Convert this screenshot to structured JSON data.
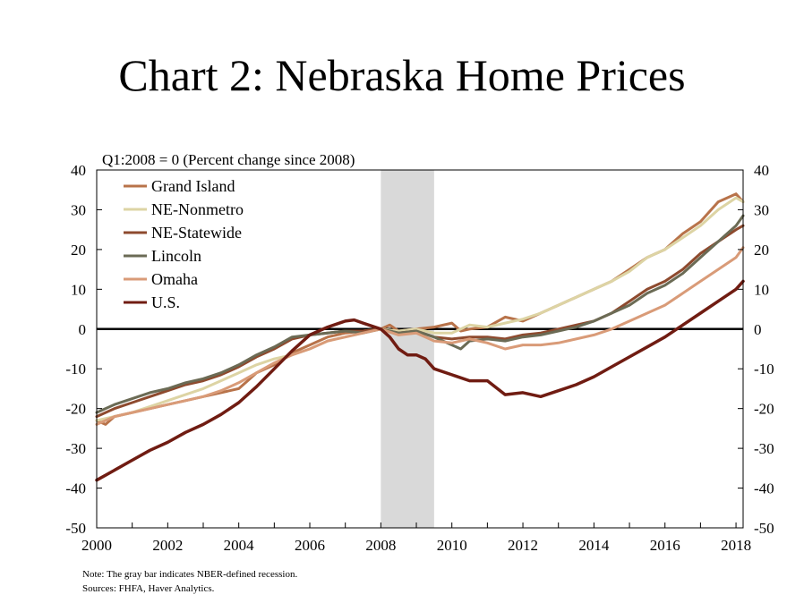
{
  "chart_data": {
    "type": "line",
    "title": "Chart 2: Nebraska Home Prices",
    "subtitle": "Q1:2008 = 0 (Percent change since 2008)",
    "xlabel": "",
    "ylabel": "",
    "xlim": [
      2000,
      2018.2
    ],
    "ylim": [
      -50,
      40
    ],
    "x_ticks": [
      "2000",
      "2002",
      "2004",
      "2006",
      "2008",
      "2010",
      "2012",
      "2014",
      "2016",
      "2018"
    ],
    "y_ticks": [
      "40",
      "30",
      "20",
      "10",
      "0",
      "-10",
      "-20",
      "-30",
      "-40",
      "-50"
    ],
    "right_axis": true,
    "grid": false,
    "legend_position": "top-left",
    "zero_line": true,
    "recession": {
      "start": 2008.0,
      "end": 2009.5,
      "color": "#d9d9d9"
    },
    "notes": [
      "Note: The gray bar indicates NBER-defined recession.",
      "Sources: FHFA, Haver Analytics."
    ],
    "series": [
      {
        "name": "Grand Island",
        "color": "#b8734a",
        "points": [
          [
            2000,
            -23
          ],
          [
            2000.25,
            -24
          ],
          [
            2000.5,
            -22
          ],
          [
            2001,
            -21
          ],
          [
            2001.5,
            -20
          ],
          [
            2002,
            -19
          ],
          [
            2002.5,
            -18
          ],
          [
            2003,
            -17
          ],
          [
            2003.5,
            -16
          ],
          [
            2004,
            -15
          ],
          [
            2004.25,
            -13
          ],
          [
            2004.5,
            -11
          ],
          [
            2005,
            -9
          ],
          [
            2005.5,
            -6
          ],
          [
            2006,
            -4
          ],
          [
            2006.5,
            -2
          ],
          [
            2007,
            -1
          ],
          [
            2007.5,
            -0.5
          ],
          [
            2008,
            0
          ],
          [
            2008.25,
            1
          ],
          [
            2008.5,
            -0.5
          ],
          [
            2009,
            0
          ],
          [
            2009.5,
            0.5
          ],
          [
            2010,
            1.5
          ],
          [
            2010.25,
            -0.5
          ],
          [
            2010.5,
            0
          ],
          [
            2011,
            0.5
          ],
          [
            2011.5,
            3
          ],
          [
            2012,
            2
          ],
          [
            2012.5,
            4
          ],
          [
            2013,
            6
          ],
          [
            2013.5,
            8
          ],
          [
            2014,
            10
          ],
          [
            2014.5,
            12
          ],
          [
            2015,
            15
          ],
          [
            2015.5,
            18
          ],
          [
            2016,
            20
          ],
          [
            2016.5,
            24
          ],
          [
            2017,
            27
          ],
          [
            2017.5,
            32
          ],
          [
            2018,
            34
          ],
          [
            2018.2,
            32
          ]
        ]
      },
      {
        "name": "NE-Nonmetro",
        "color": "#ddd4a4",
        "points": [
          [
            2000,
            -23
          ],
          [
            2000.5,
            -22
          ],
          [
            2001,
            -21
          ],
          [
            2001.5,
            -19.5
          ],
          [
            2002,
            -18
          ],
          [
            2002.5,
            -16.5
          ],
          [
            2003,
            -15
          ],
          [
            2003.5,
            -13
          ],
          [
            2004,
            -11
          ],
          [
            2004.5,
            -9
          ],
          [
            2005,
            -7.5
          ],
          [
            2005.5,
            -6.5
          ],
          [
            2006,
            -5
          ],
          [
            2006.5,
            -3
          ],
          [
            2007,
            -2
          ],
          [
            2007.5,
            -1
          ],
          [
            2008,
            0
          ],
          [
            2008.5,
            -0.5
          ],
          [
            2009,
            0
          ],
          [
            2009.5,
            -1
          ],
          [
            2010,
            -1
          ],
          [
            2010.5,
            1
          ],
          [
            2011,
            0.5
          ],
          [
            2011.5,
            1.5
          ],
          [
            2012,
            2.5
          ],
          [
            2012.5,
            4
          ],
          [
            2013,
            6
          ],
          [
            2013.5,
            8
          ],
          [
            2014,
            10
          ],
          [
            2014.5,
            12
          ],
          [
            2015,
            14.5
          ],
          [
            2015.5,
            18
          ],
          [
            2016,
            20
          ],
          [
            2016.5,
            23
          ],
          [
            2017,
            26
          ],
          [
            2017.5,
            30
          ],
          [
            2018,
            33
          ],
          [
            2018.2,
            32
          ]
        ]
      },
      {
        "name": "NE-Statewide",
        "color": "#8e4a2e",
        "points": [
          [
            2000,
            -22
          ],
          [
            2000.5,
            -20
          ],
          [
            2001,
            -18.5
          ],
          [
            2001.5,
            -17
          ],
          [
            2002,
            -15.5
          ],
          [
            2002.5,
            -14
          ],
          [
            2003,
            -13
          ],
          [
            2003.5,
            -11.5
          ],
          [
            2004,
            -9.5
          ],
          [
            2004.5,
            -7
          ],
          [
            2005,
            -5
          ],
          [
            2005.5,
            -2.5
          ],
          [
            2006,
            -1.5
          ],
          [
            2006.5,
            -1
          ],
          [
            2007,
            -0.5
          ],
          [
            2007.5,
            -0.5
          ],
          [
            2008,
            0
          ],
          [
            2008.5,
            -1
          ],
          [
            2009,
            -0.5
          ],
          [
            2009.5,
            -2
          ],
          [
            2010,
            -2.5
          ],
          [
            2010.5,
            -2
          ],
          [
            2011,
            -2
          ],
          [
            2011.5,
            -2.5
          ],
          [
            2012,
            -1.5
          ],
          [
            2012.5,
            -1
          ],
          [
            2013,
            0
          ],
          [
            2013.5,
            1
          ],
          [
            2014,
            2
          ],
          [
            2014.5,
            4
          ],
          [
            2015,
            7
          ],
          [
            2015.5,
            10
          ],
          [
            2016,
            12
          ],
          [
            2016.5,
            15
          ],
          [
            2017,
            19
          ],
          [
            2017.5,
            22
          ],
          [
            2018,
            25
          ],
          [
            2018.2,
            26
          ]
        ]
      },
      {
        "name": "Lincoln",
        "color": "#6b6b55",
        "points": [
          [
            2000,
            -21
          ],
          [
            2000.5,
            -19
          ],
          [
            2001,
            -17.5
          ],
          [
            2001.5,
            -16
          ],
          [
            2002,
            -15
          ],
          [
            2002.5,
            -13.5
          ],
          [
            2003,
            -12.5
          ],
          [
            2003.5,
            -11
          ],
          [
            2004,
            -9
          ],
          [
            2004.5,
            -6.5
          ],
          [
            2005,
            -4.5
          ],
          [
            2005.5,
            -2
          ],
          [
            2006,
            -1.5
          ],
          [
            2006.5,
            -1
          ],
          [
            2007,
            -0.5
          ],
          [
            2007.5,
            -1
          ],
          [
            2008,
            0
          ],
          [
            2008.5,
            -1
          ],
          [
            2009,
            -0.5
          ],
          [
            2009.5,
            -2
          ],
          [
            2010,
            -4
          ],
          [
            2010.25,
            -5
          ],
          [
            2010.5,
            -3
          ],
          [
            2011,
            -2.5
          ],
          [
            2011.5,
            -3
          ],
          [
            2012,
            -2
          ],
          [
            2012.5,
            -1.5
          ],
          [
            2013,
            -0.5
          ],
          [
            2013.5,
            0.5
          ],
          [
            2014,
            2
          ],
          [
            2014.5,
            4
          ],
          [
            2015,
            6
          ],
          [
            2015.5,
            9
          ],
          [
            2016,
            11
          ],
          [
            2016.5,
            14
          ],
          [
            2017,
            18
          ],
          [
            2017.5,
            22
          ],
          [
            2018,
            26
          ],
          [
            2018.2,
            28.5
          ]
        ]
      },
      {
        "name": "Omaha",
        "color": "#d99b78",
        "points": [
          [
            2000,
            -24
          ],
          [
            2000.5,
            -22
          ],
          [
            2001,
            -21
          ],
          [
            2001.5,
            -20
          ],
          [
            2002,
            -19
          ],
          [
            2002.5,
            -18
          ],
          [
            2003,
            -17
          ],
          [
            2003.5,
            -15.5
          ],
          [
            2004,
            -13.5
          ],
          [
            2004.5,
            -11
          ],
          [
            2005,
            -8.5
          ],
          [
            2005.5,
            -6.5
          ],
          [
            2006,
            -5
          ],
          [
            2006.5,
            -3
          ],
          [
            2007,
            -2
          ],
          [
            2007.5,
            -1
          ],
          [
            2008,
            0
          ],
          [
            2008.5,
            -1.5
          ],
          [
            2009,
            -1
          ],
          [
            2009.5,
            -3
          ],
          [
            2010,
            -3.5
          ],
          [
            2010.5,
            -2.5
          ],
          [
            2011,
            -3.5
          ],
          [
            2011.5,
            -5
          ],
          [
            2012,
            -4
          ],
          [
            2012.5,
            -4
          ],
          [
            2013,
            -3.5
          ],
          [
            2013.5,
            -2.5
          ],
          [
            2014,
            -1.5
          ],
          [
            2014.5,
            0
          ],
          [
            2015,
            2
          ],
          [
            2015.5,
            4
          ],
          [
            2016,
            6
          ],
          [
            2016.5,
            9
          ],
          [
            2017,
            12
          ],
          [
            2017.5,
            15
          ],
          [
            2018,
            18
          ],
          [
            2018.2,
            20.5
          ]
        ]
      },
      {
        "name": "U.S.",
        "color": "#701c12",
        "points": [
          [
            2000,
            -38
          ],
          [
            2000.5,
            -35.5
          ],
          [
            2001,
            -33
          ],
          [
            2001.5,
            -30.5
          ],
          [
            2002,
            -28.5
          ],
          [
            2002.5,
            -26
          ],
          [
            2003,
            -24
          ],
          [
            2003.5,
            -21.5
          ],
          [
            2004,
            -18.5
          ],
          [
            2004.5,
            -14.5
          ],
          [
            2005,
            -10
          ],
          [
            2005.5,
            -5.5
          ],
          [
            2006,
            -1.5
          ],
          [
            2006.5,
            0.5
          ],
          [
            2007,
            2
          ],
          [
            2007.25,
            2.3
          ],
          [
            2007.5,
            1.5
          ],
          [
            2008,
            0
          ],
          [
            2008.25,
            -2
          ],
          [
            2008.5,
            -5
          ],
          [
            2008.75,
            -6.5
          ],
          [
            2009,
            -6.5
          ],
          [
            2009.25,
            -7.5
          ],
          [
            2009.5,
            -10
          ],
          [
            2010,
            -11.5
          ],
          [
            2010.5,
            -13
          ],
          [
            2011,
            -13
          ],
          [
            2011.5,
            -16.5
          ],
          [
            2012,
            -16
          ],
          [
            2012.5,
            -17
          ],
          [
            2013,
            -15.5
          ],
          [
            2013.5,
            -14
          ],
          [
            2014,
            -12
          ],
          [
            2014.5,
            -9.5
          ],
          [
            2015,
            -7
          ],
          [
            2015.5,
            -4.5
          ],
          [
            2016,
            -2
          ],
          [
            2016.5,
            1
          ],
          [
            2017,
            4
          ],
          [
            2017.5,
            7
          ],
          [
            2018,
            10
          ],
          [
            2018.2,
            12
          ]
        ]
      }
    ]
  }
}
